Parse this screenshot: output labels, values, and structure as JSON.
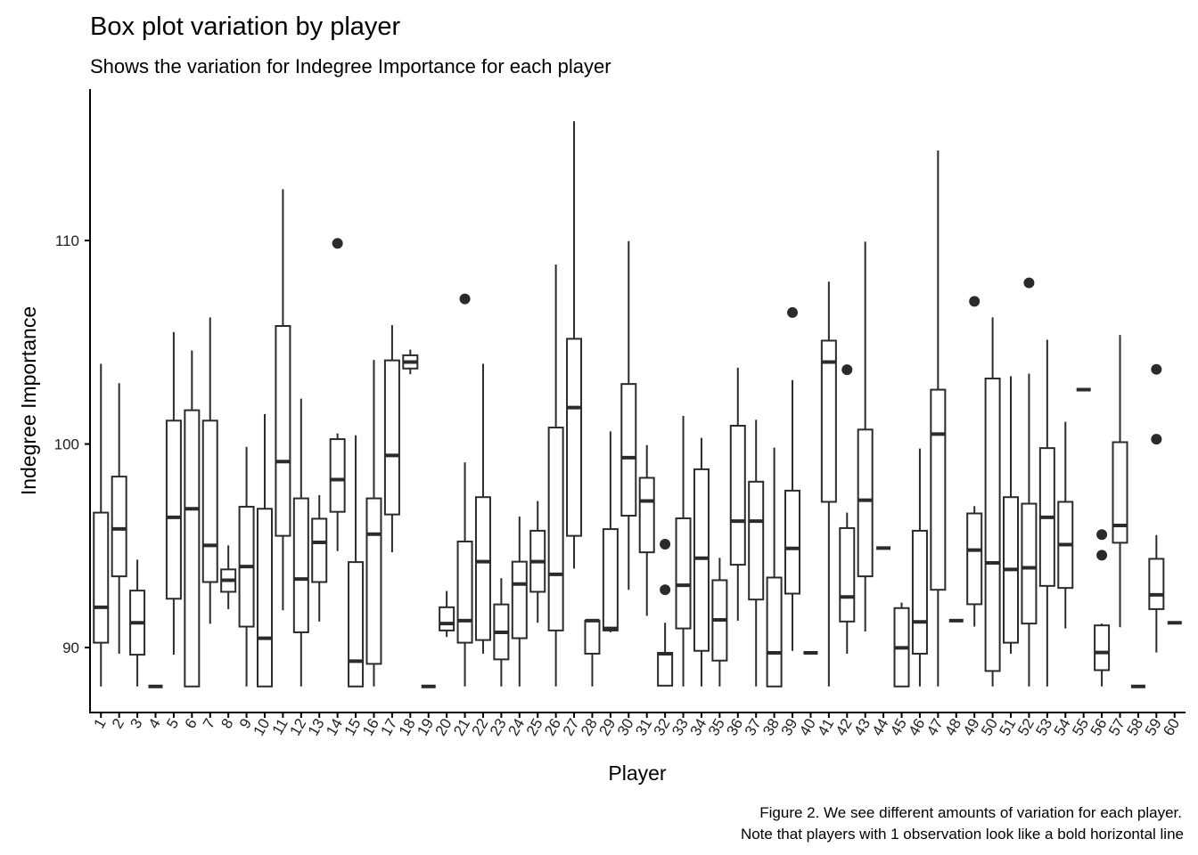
{
  "chart_data": {
    "type": "boxplot",
    "title": "Box plot variation by player",
    "subtitle": "Shows the variation for Indegree Importance for each player",
    "xlabel": "Player",
    "ylabel": "Indegree Importance",
    "caption": [
      "Figure 2. We see different amounts of variation for each player.",
      "Note that players with 1 observation look like a bold horizontal line"
    ],
    "ylim": [
      86.81,
      117.44
    ],
    "yticks": [
      90,
      100,
      110
    ],
    "grid": false,
    "color": "#2b2b2b",
    "boxes": [
      {
        "player": "1",
        "low": 88.09,
        "q1": 90.24,
        "median": 91.98,
        "q3": 96.63,
        "high": 103.94,
        "outliers": []
      },
      {
        "player": "2",
        "low": 89.7,
        "q1": 93.5,
        "median": 95.83,
        "q3": 98.4,
        "high": 102.99,
        "outliers": []
      },
      {
        "player": "3",
        "low": 88.09,
        "q1": 89.65,
        "median": 91.22,
        "q3": 92.8,
        "high": 94.32,
        "outliers": []
      },
      {
        "player": "4",
        "low": 88.09,
        "q1": 88.09,
        "median": 88.09,
        "q3": 88.09,
        "high": 88.09,
        "outliers": []
      },
      {
        "player": "5",
        "low": 89.65,
        "q1": 92.4,
        "median": 96.4,
        "q3": 101.15,
        "high": 105.5,
        "outliers": []
      },
      {
        "player": "6",
        "low": 88.09,
        "q1": 88.09,
        "median": 96.82,
        "q3": 101.66,
        "high": 104.6,
        "outliers": []
      },
      {
        "player": "7",
        "low": 91.17,
        "q1": 93.22,
        "median": 95.02,
        "q3": 101.15,
        "high": 106.22,
        "outliers": []
      },
      {
        "player": "8",
        "low": 91.89,
        "q1": 92.74,
        "median": 93.31,
        "q3": 93.84,
        "high": 95.02,
        "outliers": []
      },
      {
        "player": "9",
        "low": 88.09,
        "q1": 91.03,
        "median": 93.98,
        "q3": 96.92,
        "high": 99.86,
        "outliers": []
      },
      {
        "player": "10",
        "low": 88.09,
        "q1": 88.09,
        "median": 90.46,
        "q3": 96.82,
        "high": 101.47,
        "outliers": []
      },
      {
        "player": "11",
        "low": 91.83,
        "q1": 95.49,
        "median": 99.14,
        "q3": 105.8,
        "high": 112.52,
        "outliers": []
      },
      {
        "player": "12",
        "low": 88.09,
        "q1": 90.75,
        "median": 93.37,
        "q3": 97.33,
        "high": 102.23,
        "outliers": []
      },
      {
        "player": "13",
        "low": 91.28,
        "q1": 93.22,
        "median": 95.17,
        "q3": 96.33,
        "high": 97.49,
        "outliers": []
      },
      {
        "player": "14",
        "low": 94.74,
        "q1": 96.67,
        "median": 98.25,
        "q3": 100.24,
        "high": 100.52,
        "outliers": [
          109.86
        ]
      },
      {
        "player": "15",
        "low": 88.09,
        "q1": 88.09,
        "median": 89.33,
        "q3": 94.2,
        "high": 100.43,
        "outliers": []
      },
      {
        "player": "16",
        "low": 88.09,
        "q1": 89.2,
        "median": 95.57,
        "q3": 97.33,
        "high": 104.13,
        "outliers": []
      },
      {
        "player": "17",
        "low": 94.68,
        "q1": 96.54,
        "median": 99.44,
        "q3": 104.11,
        "high": 105.84,
        "outliers": []
      },
      {
        "player": "18",
        "low": 103.43,
        "q1": 103.71,
        "median": 104.03,
        "q3": 104.36,
        "high": 104.64,
        "outliers": []
      },
      {
        "player": "19",
        "low": 88.09,
        "q1": 88.09,
        "median": 88.09,
        "q3": 88.09,
        "high": 88.09,
        "outliers": []
      },
      {
        "player": "20",
        "low": 90.52,
        "q1": 90.84,
        "median": 91.18,
        "q3": 91.98,
        "high": 92.78,
        "outliers": []
      },
      {
        "player": "21",
        "low": 88.09,
        "q1": 90.24,
        "median": 91.32,
        "q3": 95.21,
        "high": 99.1,
        "outliers": [
          107.13
        ]
      },
      {
        "player": "22",
        "low": 89.7,
        "q1": 90.37,
        "median": 94.22,
        "q3": 97.39,
        "high": 103.94,
        "outliers": []
      },
      {
        "player": "23",
        "low": 88.09,
        "q1": 89.42,
        "median": 90.75,
        "q3": 92.12,
        "high": 93.41,
        "outliers": []
      },
      {
        "player": "24",
        "low": 88.09,
        "q1": 90.46,
        "median": 93.12,
        "q3": 94.22,
        "high": 96.44,
        "outliers": []
      },
      {
        "player": "25",
        "low": 91.22,
        "q1": 92.74,
        "median": 94.22,
        "q3": 95.74,
        "high": 97.2,
        "outliers": []
      },
      {
        "player": "26",
        "low": 88.09,
        "q1": 90.84,
        "median": 93.6,
        "q3": 100.81,
        "high": 108.82,
        "outliers": []
      },
      {
        "player": "27",
        "low": 93.88,
        "q1": 95.49,
        "median": 101.79,
        "q3": 105.17,
        "high": 115.86,
        "outliers": []
      },
      {
        "player": "28",
        "low": 88.09,
        "q1": 89.7,
        "median": 91.32,
        "q3": 91.32,
        "high": 91.32,
        "outliers": []
      },
      {
        "player": "29",
        "low": 90.75,
        "q1": 90.84,
        "median": 90.94,
        "q3": 95.82,
        "high": 100.62,
        "outliers": []
      },
      {
        "player": "30",
        "low": 92.84,
        "q1": 96.48,
        "median": 99.33,
        "q3": 102.95,
        "high": 109.97,
        "outliers": []
      },
      {
        "player": "31",
        "low": 91.56,
        "q1": 94.68,
        "median": 97.2,
        "q3": 98.34,
        "high": 99.95,
        "outliers": []
      },
      {
        "player": "32",
        "low": 88.09,
        "q1": 88.13,
        "median": 89.7,
        "q3": 89.74,
        "high": 91.22,
        "outliers": [
          95.08,
          92.84
        ]
      },
      {
        "player": "33",
        "low": 88.09,
        "q1": 90.94,
        "median": 93.06,
        "q3": 96.35,
        "high": 101.38,
        "outliers": []
      },
      {
        "player": "34",
        "low": 88.09,
        "q1": 89.84,
        "median": 94.39,
        "q3": 98.76,
        "high": 100.3,
        "outliers": []
      },
      {
        "player": "35",
        "low": 88.09,
        "q1": 89.36,
        "median": 91.36,
        "q3": 93.31,
        "high": 94.41,
        "outliers": []
      },
      {
        "player": "36",
        "low": 91.32,
        "q1": 94.07,
        "median": 96.21,
        "q3": 100.9,
        "high": 103.75,
        "outliers": []
      },
      {
        "player": "37",
        "low": 88.09,
        "q1": 92.36,
        "median": 96.21,
        "q3": 98.15,
        "high": 101.19,
        "outliers": []
      },
      {
        "player": "38",
        "low": 88.09,
        "q1": 88.09,
        "median": 89.74,
        "q3": 93.44,
        "high": 99.82,
        "outliers": []
      },
      {
        "player": "39",
        "low": 89.84,
        "q1": 92.65,
        "median": 94.87,
        "q3": 97.71,
        "high": 103.14,
        "outliers": [
          106.46
        ]
      },
      {
        "player": "40",
        "low": 89.74,
        "q1": 89.74,
        "median": 89.74,
        "q3": 89.74,
        "high": 89.74,
        "outliers": []
      },
      {
        "player": "41",
        "low": 88.09,
        "q1": 97.16,
        "median": 104.03,
        "q3": 105.08,
        "high": 107.98,
        "outliers": []
      },
      {
        "player": "42",
        "low": 89.7,
        "q1": 91.28,
        "median": 92.49,
        "q3": 95.87,
        "high": 96.63,
        "outliers": [
          103.65
        ]
      },
      {
        "player": "43",
        "low": 90.79,
        "q1": 93.5,
        "median": 97.24,
        "q3": 100.71,
        "high": 109.94,
        "outliers": []
      },
      {
        "player": "44",
        "low": 94.89,
        "q1": 94.89,
        "median": 94.89,
        "q3": 94.89,
        "high": 94.89,
        "outliers": []
      },
      {
        "player": "45",
        "low": 88.09,
        "q1": 88.09,
        "median": 89.99,
        "q3": 91.94,
        "high": 92.21,
        "outliers": []
      },
      {
        "player": "46",
        "low": 88.09,
        "q1": 89.7,
        "median": 91.26,
        "q3": 95.74,
        "high": 99.78,
        "outliers": []
      },
      {
        "player": "47",
        "low": 88.09,
        "q1": 92.84,
        "median": 100.49,
        "q3": 102.67,
        "high": 114.42,
        "outliers": []
      },
      {
        "player": "48",
        "low": 91.32,
        "q1": 91.32,
        "median": 91.32,
        "q3": 91.32,
        "high": 91.32,
        "outliers": []
      },
      {
        "player": "49",
        "low": 91.03,
        "q1": 92.13,
        "median": 94.79,
        "q3": 96.59,
        "high": 96.95,
        "outliers": [
          107.01
        ]
      },
      {
        "player": "50",
        "low": 88.09,
        "q1": 88.85,
        "median": 94.16,
        "q3": 103.22,
        "high": 106.22,
        "outliers": []
      },
      {
        "player": "51",
        "low": 89.7,
        "q1": 90.24,
        "median": 93.84,
        "q3": 97.39,
        "high": 103.33,
        "outliers": []
      },
      {
        "player": "52",
        "low": 88.09,
        "q1": 91.18,
        "median": 93.92,
        "q3": 97.07,
        "high": 103.46,
        "outliers": [
          107.92
        ]
      },
      {
        "player": "53",
        "low": 88.09,
        "q1": 93.03,
        "median": 96.4,
        "q3": 99.8,
        "high": 105.12,
        "outliers": []
      },
      {
        "player": "54",
        "low": 90.94,
        "q1": 92.93,
        "median": 95.06,
        "q3": 97.16,
        "high": 101.09,
        "outliers": []
      },
      {
        "player": "55",
        "low": 102.67,
        "q1": 102.67,
        "median": 102.67,
        "q3": 102.67,
        "high": 102.67,
        "outliers": []
      },
      {
        "player": "56",
        "low": 88.09,
        "q1": 88.89,
        "median": 89.76,
        "q3": 91.09,
        "high": 91.18,
        "outliers": [
          95.55,
          94.54
        ]
      },
      {
        "player": "57",
        "low": 91.0,
        "q1": 95.15,
        "median": 96.0,
        "q3": 100.09,
        "high": 105.36,
        "outliers": []
      },
      {
        "player": "58",
        "low": 88.09,
        "q1": 88.09,
        "median": 88.09,
        "q3": 88.09,
        "high": 88.09,
        "outliers": []
      },
      {
        "player": "59",
        "low": 89.76,
        "q1": 91.89,
        "median": 92.59,
        "q3": 94.36,
        "high": 95.53,
        "outliers": [
          103.67,
          100.24
        ]
      },
      {
        "player": "60",
        "low": 91.22,
        "q1": 91.22,
        "median": 91.22,
        "q3": 91.22,
        "high": 91.22,
        "outliers": []
      }
    ]
  }
}
